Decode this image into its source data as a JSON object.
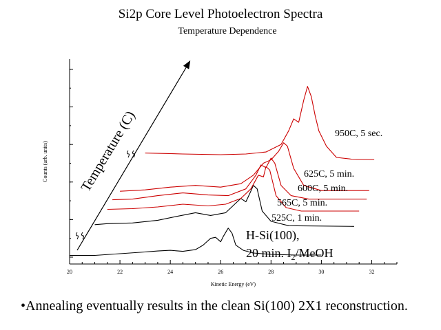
{
  "header": {
    "title": "Si2p Core Level Photoelectron Spectra",
    "subtitle": "Temperature Dependence"
  },
  "footer": {
    "note": "•Annealing eventually results in the clean Si(100) 2X1 reconstruction."
  },
  "chart_data": {
    "type": "line",
    "title": "Si2p Core Level Photoelectron Spectra",
    "subtitle": "Temperature Dependence",
    "xlabel": "Kinetic Energy (eV)",
    "ylabel": "Counts (arb. units)",
    "xlim": [
      20,
      33
    ],
    "x_ticks": [
      20,
      22,
      24,
      26,
      28,
      30,
      32
    ],
    "x_tick_labels": [
      "20",
      "22",
      "24",
      "26",
      "28",
      "30",
      "32"
    ],
    "y_ticks_labeled": false,
    "grid": false,
    "temperature_axis_label": "Temperature (C)",
    "colors": {
      "red": "#cc0000",
      "black": "#000000"
    },
    "series": [
      {
        "label": "H-Si(100),",
        "label_line2": "20 min. I",
        "label_sub": "2",
        "label_line2_end": "/MeOH",
        "color": "#000000",
        "points": [
          [
            20.0,
            0.05
          ],
          [
            21.0,
            0.05
          ],
          [
            22.0,
            0.1
          ],
          [
            22.8,
            0.14
          ],
          [
            23.5,
            0.18
          ],
          [
            24.0,
            0.2
          ],
          [
            24.5,
            0.17
          ],
          [
            25.0,
            0.22
          ],
          [
            25.3,
            0.35
          ],
          [
            25.6,
            0.55
          ],
          [
            25.8,
            0.58
          ],
          [
            26.0,
            0.45
          ],
          [
            26.1,
            0.6
          ],
          [
            26.3,
            0.85
          ],
          [
            26.45,
            0.7
          ],
          [
            26.6,
            0.35
          ],
          [
            26.9,
            0.2
          ],
          [
            27.3,
            0.12
          ],
          [
            28.0,
            0.08
          ],
          [
            29.0,
            0.06
          ],
          [
            30.0,
            0.06
          ]
        ]
      },
      {
        "label": "525C, 1 min.",
        "color": "#000000",
        "points": [
          [
            21.0,
            0.95
          ],
          [
            21.5,
            0.98
          ],
          [
            22.5,
            1.0
          ],
          [
            23.5,
            1.08
          ],
          [
            24.3,
            1.2
          ],
          [
            25.0,
            1.3
          ],
          [
            25.6,
            1.22
          ],
          [
            26.2,
            1.3
          ],
          [
            26.6,
            1.58
          ],
          [
            26.8,
            1.72
          ],
          [
            27.0,
            1.62
          ],
          [
            27.15,
            1.85
          ],
          [
            27.3,
            2.1
          ],
          [
            27.45,
            2.0
          ],
          [
            27.65,
            1.35
          ],
          [
            28.0,
            1.05
          ],
          [
            28.7,
            0.92
          ],
          [
            31.3,
            0.9
          ]
        ]
      },
      {
        "label": "565C, 5 min.",
        "color": "#cc0000",
        "points": [
          [
            21.5,
            1.4
          ],
          [
            22.5,
            1.42
          ],
          [
            23.5,
            1.47
          ],
          [
            24.5,
            1.55
          ],
          [
            25.5,
            1.5
          ],
          [
            26.2,
            1.55
          ],
          [
            26.8,
            1.72
          ],
          [
            27.2,
            2.0
          ],
          [
            27.5,
            2.4
          ],
          [
            27.7,
            2.35
          ],
          [
            27.8,
            2.65
          ],
          [
            27.95,
            2.55
          ],
          [
            28.2,
            1.8
          ],
          [
            28.6,
            1.45
          ],
          [
            29.2,
            1.35
          ],
          [
            31.5,
            1.35
          ]
        ]
      },
      {
        "label": "600C, 5 min.",
        "color": "#cc0000",
        "points": [
          [
            21.7,
            1.68
          ],
          [
            22.5,
            1.7
          ],
          [
            23.5,
            1.8
          ],
          [
            24.5,
            1.88
          ],
          [
            25.5,
            1.82
          ],
          [
            26.3,
            1.8
          ],
          [
            27.0,
            2.0
          ],
          [
            27.4,
            2.4
          ],
          [
            27.6,
            2.7
          ],
          [
            27.8,
            2.62
          ],
          [
            28.0,
            2.9
          ],
          [
            28.15,
            2.75
          ],
          [
            28.4,
            2.1
          ],
          [
            28.8,
            1.8
          ],
          [
            29.5,
            1.7
          ],
          [
            31.8,
            1.7
          ]
        ]
      },
      {
        "label": "625C, 5 min.",
        "color": "#cc0000",
        "points": [
          [
            22.0,
            1.93
          ],
          [
            23.0,
            1.97
          ],
          [
            24.0,
            2.05
          ],
          [
            25.0,
            2.1
          ],
          [
            26.0,
            2.05
          ],
          [
            26.8,
            2.15
          ],
          [
            27.3,
            2.4
          ],
          [
            27.7,
            2.75
          ],
          [
            28.0,
            2.85
          ],
          [
            28.3,
            3.1
          ],
          [
            28.5,
            3.35
          ],
          [
            28.65,
            3.25
          ],
          [
            28.9,
            2.6
          ],
          [
            29.3,
            2.1
          ],
          [
            30.0,
            1.95
          ],
          [
            31.9,
            1.95
          ]
        ]
      },
      {
        "label": "950C, 5 sec.",
        "color": "#cc0000",
        "points": [
          [
            23.0,
            3.05
          ],
          [
            24.5,
            3.02
          ],
          [
            26.0,
            3.0
          ],
          [
            27.0,
            3.02
          ],
          [
            27.8,
            3.08
          ],
          [
            28.4,
            3.3
          ],
          [
            28.7,
            3.7
          ],
          [
            28.9,
            4.05
          ],
          [
            29.1,
            3.95
          ],
          [
            29.3,
            4.6
          ],
          [
            29.45,
            5.0
          ],
          [
            29.6,
            4.7
          ],
          [
            29.75,
            4.15
          ],
          [
            29.9,
            3.7
          ],
          [
            30.2,
            3.25
          ],
          [
            30.6,
            2.92
          ],
          [
            31.2,
            2.87
          ],
          [
            32.1,
            2.86
          ]
        ]
      }
    ]
  }
}
